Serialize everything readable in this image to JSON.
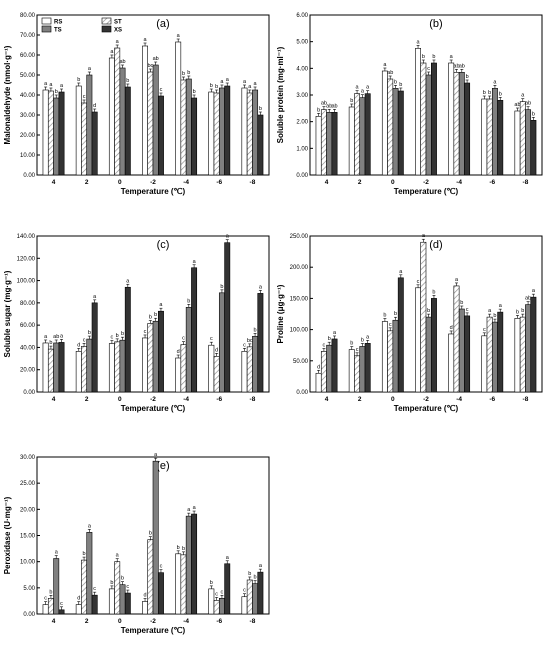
{
  "figure": {
    "legend": [
      {
        "name": "RS",
        "pattern": "white"
      },
      {
        "name": "TS",
        "pattern": "gray"
      },
      {
        "name": "ST",
        "pattern": "hatch"
      },
      {
        "name": "XS",
        "pattern": "black"
      }
    ],
    "colors": {
      "axis": "#000000",
      "white": "#ffffff",
      "gray": "#808080",
      "black": "#333333",
      "hatch_line": "#888888"
    }
  },
  "chart_data": [
    {
      "panel": "(a)",
      "type": "bar",
      "ylabel": "Malonaldehyde (nmol·g⁻¹)",
      "xlabel": "Temperature (℃)",
      "categories": [
        "4",
        "2",
        "0",
        "-2",
        "-4",
        "-6",
        "-8"
      ],
      "ylim": [
        0,
        80
      ],
      "yticks": [
        "0.00",
        "10.00",
        "20.00",
        "30.00",
        "40.00",
        "50.00",
        "60.00",
        "70.00",
        "80.00"
      ],
      "series": [
        {
          "name": "RS",
          "values": [
            42.5,
            44.5,
            58.5,
            64.5,
            66.5,
            41.5,
            43.5
          ],
          "letters": [
            "a",
            "b",
            "a",
            "a",
            "a",
            "b",
            "a"
          ]
        },
        {
          "name": "ST",
          "values": [
            42.0,
            36.0,
            63.5,
            51.5,
            47.5,
            41.0,
            41.0
          ],
          "letters": [
            "a",
            "c",
            "a",
            "bc",
            "b",
            "b",
            "a"
          ]
        },
        {
          "name": "TS",
          "values": [
            38.5,
            50.0,
            53.5,
            55.0,
            48.0,
            43.5,
            42.5
          ],
          "letters": [
            "b",
            "a",
            "ab",
            "ab",
            "b",
            "a",
            "a"
          ]
        },
        {
          "name": "XS",
          "values": [
            41.5,
            31.5,
            44.0,
            39.5,
            38.5,
            44.5,
            30.0
          ],
          "letters": [
            "a",
            "d",
            "b",
            "c",
            "b",
            "a",
            "b"
          ]
        }
      ]
    },
    {
      "panel": "(b)",
      "type": "bar",
      "ylabel": "Soluble protein (mg·ml⁻¹)",
      "xlabel": "Temperature (℃)",
      "categories": [
        "4",
        "2",
        "0",
        "-2",
        "-4",
        "-6",
        "-8"
      ],
      "ylim": [
        0,
        6
      ],
      "yticks": [
        "0.00",
        "1.00",
        "2.00",
        "3.00",
        "4.00",
        "5.00",
        "6.00"
      ],
      "series": [
        {
          "name": "RS",
          "values": [
            2.2,
            2.55,
            3.9,
            4.75,
            4.2,
            2.85,
            2.4
          ],
          "letters": [
            "b",
            "b",
            "a",
            "a",
            "a",
            "b",
            "ab"
          ]
        },
        {
          "name": "ST",
          "values": [
            2.45,
            3.05,
            3.6,
            4.2,
            3.85,
            2.85,
            2.75
          ],
          "letters": [
            "ab",
            "a",
            "ab",
            "b",
            "ab",
            "b",
            "a"
          ]
        },
        {
          "name": "TS",
          "values": [
            2.35,
            2.9,
            3.25,
            3.75,
            3.85,
            3.25,
            2.45
          ],
          "letters": [
            "ab",
            "a",
            "b",
            "c",
            "ab",
            "a",
            "ab"
          ]
        },
        {
          "name": "XS",
          "values": [
            2.35,
            3.05,
            3.15,
            4.2,
            3.45,
            2.8,
            2.05
          ],
          "letters": [
            "ab",
            "a",
            "b",
            "b",
            "b",
            "b",
            "b"
          ]
        }
      ]
    },
    {
      "panel": "(c)",
      "type": "bar",
      "ylabel": "Soluble sugar (mg·g⁻¹)",
      "xlabel": "Temperature (℃)",
      "categories": [
        "4",
        "2",
        "0",
        "-2",
        "-4",
        "-6",
        "-8"
      ],
      "ylim": [
        0,
        140
      ],
      "yticks": [
        "0.00",
        "20.00",
        "40.00",
        "60.00",
        "80.00",
        "100.00",
        "120.00",
        "140.00"
      ],
      "series": [
        {
          "name": "RS",
          "values": [
            44.0,
            36.5,
            43.5,
            48.5,
            30.5,
            42.0,
            36.5
          ],
          "letters": [
            "a",
            "d",
            "c",
            "c",
            "d",
            "c",
            "c"
          ]
        },
        {
          "name": "ST",
          "values": [
            38.5,
            41.0,
            45.0,
            61.5,
            42.5,
            32.0,
            40.5
          ],
          "letters": [
            "b",
            "c",
            "b",
            "b",
            "c",
            "d",
            "bc"
          ]
        },
        {
          "name": "TS",
          "values": [
            44.0,
            47.5,
            46.5,
            63.5,
            76.0,
            89.0,
            50.0
          ],
          "letters": [
            "ab",
            "b",
            "b",
            "b",
            "b",
            "b",
            "b"
          ]
        },
        {
          "name": "XS",
          "values": [
            44.5,
            80.0,
            94.0,
            72.5,
            111.5,
            134.0,
            88.5
          ],
          "letters": [
            "a",
            "a",
            "a",
            "a",
            "a",
            "a",
            "a"
          ]
        }
      ]
    },
    {
      "panel": "(d)",
      "type": "bar",
      "ylabel": "Proline (μg·g⁻¹)",
      "xlabel": "Temperature (℃)",
      "categories": [
        "4",
        "2",
        "0",
        "-2",
        "-4",
        "-6",
        "-8"
      ],
      "ylim": [
        0,
        250
      ],
      "yticks": [
        "0.00",
        "50.00",
        "100.00",
        "150.00",
        "200.00",
        "250.00"
      ],
      "series": [
        {
          "name": "RS",
          "values": [
            30.0,
            68.0,
            113.0,
            167.0,
            93.0,
            90.0,
            118.0
          ],
          "letters": [
            "d",
            "b",
            "b",
            "c",
            "d",
            "c",
            "b"
          ]
        },
        {
          "name": "ST",
          "values": [
            65.0,
            58.0,
            98.0,
            240.0,
            170.0,
            120.0,
            120.0
          ],
          "letters": [
            "c",
            "c",
            "c",
            "a",
            "a",
            "a",
            "b"
          ]
        },
        {
          "name": "TS",
          "values": [
            75.0,
            73.0,
            115.0,
            120.0,
            133.0,
            112.0,
            140.0
          ],
          "letters": [
            "b",
            "b",
            "b",
            "b",
            "b",
            "b",
            "ab"
          ]
        },
        {
          "name": "XS",
          "values": [
            85.0,
            78.0,
            183.0,
            150.0,
            122.0,
            128.0,
            152.0
          ],
          "letters": [
            "a",
            "a",
            "a",
            "b",
            "c",
            "a",
            "a"
          ]
        }
      ]
    },
    {
      "panel": "(e)",
      "type": "bar",
      "ylabel": "Peroxidase (U·mg⁻¹)",
      "xlabel": "Temperature (℃)",
      "categories": [
        "4",
        "2",
        "0",
        "-2",
        "-4",
        "-6",
        "-8"
      ],
      "ylim": [
        0,
        30
      ],
      "yticks": [
        "0.00",
        "5.00",
        "10.00",
        "15.00",
        "20.00",
        "25.00",
        "30.00"
      ],
      "series": [
        {
          "name": "RS",
          "values": [
            1.8,
            1.8,
            4.8,
            2.4,
            11.5,
            4.8,
            3.3
          ],
          "letters": [
            "c",
            "d",
            "b",
            "d",
            "b",
            "b",
            "c"
          ]
        },
        {
          "name": "ST",
          "values": [
            3.0,
            10.3,
            10.0,
            14.2,
            11.3,
            2.6,
            6.5
          ],
          "letters": [
            "b",
            "b",
            "a",
            "b",
            "b",
            "c",
            "b"
          ]
        },
        {
          "name": "TS",
          "values": [
            10.6,
            15.6,
            5.6,
            29.2,
            18.7,
            3.0,
            5.8
          ],
          "letters": [
            "a",
            "a",
            "b",
            "a",
            "a",
            "c",
            "b"
          ]
        },
        {
          "name": "XS",
          "values": [
            0.8,
            3.6,
            4.0,
            7.9,
            19.1,
            9.6,
            8.0
          ],
          "letters": [
            "c",
            "c",
            "c",
            "c",
            "a",
            "a",
            "a"
          ]
        }
      ]
    }
  ]
}
